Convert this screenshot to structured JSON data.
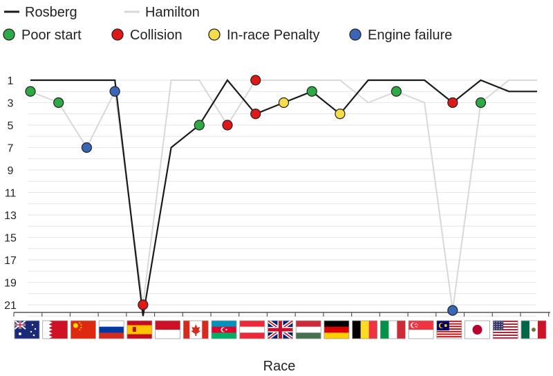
{
  "chart_data": {
    "type": "line",
    "xlabel": "Race",
    "ylabel": "",
    "yaxis_inverted": true,
    "ylim": [
      1,
      22
    ],
    "yticks": [
      "1",
      "3",
      "5",
      "7",
      "9",
      "11",
      "13",
      "15",
      "17",
      "19",
      "21"
    ],
    "grid": "horizontal",
    "legend_position": "top-left",
    "races": [
      "australia",
      "bahrain",
      "china",
      "russia",
      "spain",
      "monaco",
      "canada",
      "azerbaijan",
      "austria",
      "great-britain",
      "hungary",
      "germany",
      "belgium",
      "italy",
      "singapore",
      "malaysia",
      "japan",
      "usa",
      "mexico"
    ],
    "series": [
      {
        "name": "Rosberg",
        "color": "#1a1a1a",
        "values": [
          1,
          1,
          1,
          1,
          22,
          7,
          5,
          1,
          4,
          3,
          2,
          4,
          1,
          1,
          1,
          3,
          1,
          2,
          2
        ]
      },
      {
        "name": "Hamilton",
        "color": "#d8d8d8",
        "values": [
          2,
          3,
          7,
          2,
          21,
          1,
          1,
          5,
          1,
          1,
          1,
          1,
          3,
          2,
          3,
          21.5,
          3,
          1,
          1
        ]
      }
    ],
    "events": [
      {
        "race": 0,
        "value": 2,
        "type": "poor-start"
      },
      {
        "race": 1,
        "value": 3,
        "type": "poor-start"
      },
      {
        "race": 2,
        "value": 7,
        "type": "engine-failure"
      },
      {
        "race": 3,
        "value": 2,
        "type": "engine-failure"
      },
      {
        "race": 4,
        "value": 21,
        "type": "collision"
      },
      {
        "race": 6,
        "value": 5,
        "type": "poor-start"
      },
      {
        "race": 7,
        "value": 5,
        "type": "collision"
      },
      {
        "race": 8,
        "value": 1,
        "type": "collision"
      },
      {
        "race": 8,
        "value": 4,
        "type": "collision"
      },
      {
        "race": 9,
        "value": 3,
        "type": "in-race-penalty"
      },
      {
        "race": 10,
        "value": 2,
        "type": "poor-start"
      },
      {
        "race": 11,
        "value": 4,
        "type": "in-race-penalty"
      },
      {
        "race": 13,
        "value": 2,
        "type": "poor-start"
      },
      {
        "race": 15,
        "value": 3,
        "type": "collision"
      },
      {
        "race": 15,
        "value": 21.5,
        "type": "engine-failure"
      },
      {
        "race": 16,
        "value": 3,
        "type": "poor-start"
      }
    ]
  },
  "legend": {
    "lines": [
      {
        "label": "Rosberg",
        "color": "#1a1a1a"
      },
      {
        "label": "Hamilton",
        "color": "#d8d8d8"
      }
    ],
    "markers": [
      {
        "id": "poor-start",
        "label": "Poor start",
        "color": "#2eaa44"
      },
      {
        "id": "collision",
        "label": "Collision",
        "color": "#e01818"
      },
      {
        "id": "in-race-penalty",
        "label": "In-race Penalty",
        "color": "#f5dc4a"
      },
      {
        "id": "engine-failure",
        "label": "Engine failure",
        "color": "#3a66b8"
      }
    ]
  }
}
